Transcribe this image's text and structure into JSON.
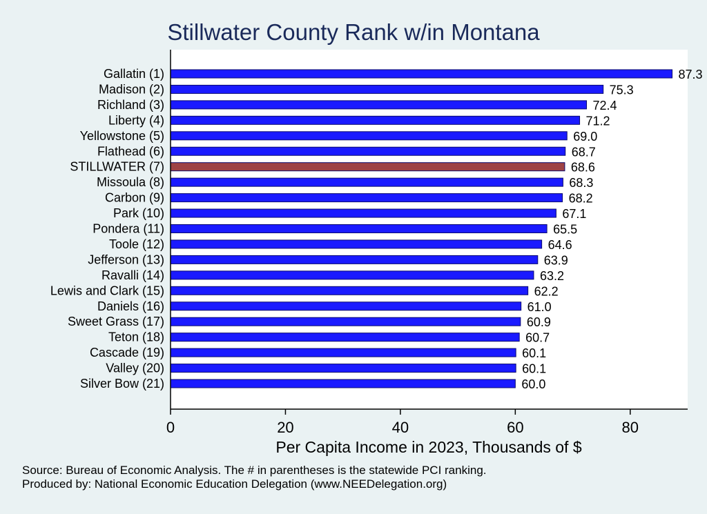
{
  "chart_data": {
    "type": "bar",
    "orientation": "horizontal",
    "title": "Stillwater County Rank w/in Montana",
    "xlabel": "Per Capita Income in 2023, Thousands of $",
    "ylabel": "",
    "xlim": [
      0,
      90
    ],
    "xticks": [
      0,
      20,
      40,
      60,
      80
    ],
    "grid": false,
    "categories": [
      "Gallatin  (1)",
      "Madison  (2)",
      "Richland  (3)",
      "Liberty  (4)",
      "Yellowstone  (5)",
      "Flathead  (6)",
      "STILLWATER  (7)",
      "Missoula  (8)",
      "Carbon  (9)",
      "Park (10)",
      "Pondera (11)",
      "Toole (12)",
      "Jefferson (13)",
      "Ravalli (14)",
      "Lewis and Clark (15)",
      "Daniels (16)",
      "Sweet Grass (17)",
      "Teton (18)",
      "Cascade (19)",
      "Valley (20)",
      "Silver Bow (21)"
    ],
    "values": [
      87.3,
      75.3,
      72.4,
      71.2,
      69.0,
      68.7,
      68.6,
      68.3,
      68.2,
      67.1,
      65.5,
      64.6,
      63.9,
      63.2,
      62.2,
      61.0,
      60.9,
      60.7,
      60.1,
      60.1,
      60.0
    ],
    "value_labels": [
      "87.3",
      "75.3",
      "72.4",
      "71.2",
      "69.0",
      "68.7",
      "68.6",
      "68.3",
      "68.2",
      "67.1",
      "65.5",
      "64.6",
      "63.9",
      "63.2",
      "62.2",
      "61.0",
      "60.9",
      "60.7",
      "60.1",
      "60.1",
      "60.0"
    ],
    "highlight_index": 6,
    "colors": {
      "bar": "#1a1aff",
      "highlight": "#9e4345",
      "bar_outline": "#0b0b6e",
      "title": "#1a2a5a"
    }
  },
  "footer": {
    "source": "Source: Bureau of Economic Analysis. The # in parentheses is the statewide PCI ranking.",
    "producer": "Produced by: National Economic Education Delegation (www.NEEDelegation.org)"
  }
}
